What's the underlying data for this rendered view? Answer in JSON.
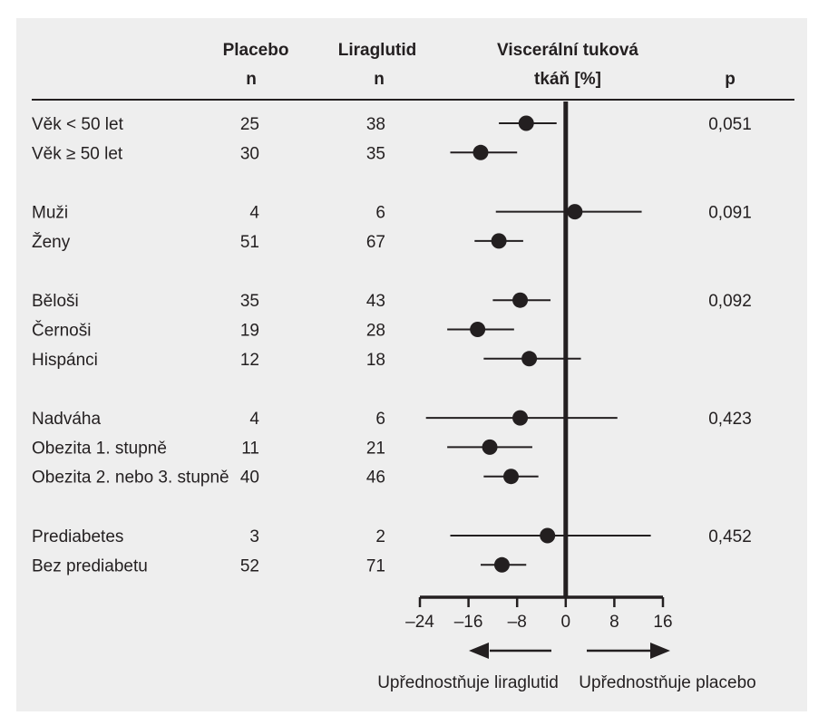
{
  "headers": {
    "placebo": "Placebo",
    "placebo_n": "n",
    "liraglutide": "Liraglutid",
    "liraglutide_n": "n",
    "effect_line1": "Viscerální tuková",
    "effect_line2": "tkáň [%]",
    "p": "p"
  },
  "chart_data": {
    "type": "forest",
    "title": "",
    "xlabel": "Viscerální tuková tkáň [%]",
    "xlim": [
      -24,
      16
    ],
    "x_ticks": [
      -24,
      -16,
      -8,
      0,
      8,
      16
    ],
    "x_tick_labels": [
      "–24",
      "–16",
      "–8",
      "0",
      "8",
      "16"
    ],
    "reference_line": 0,
    "groups": [
      {
        "p": "0,051",
        "rows": [
          {
            "label": "Věk < 50 let",
            "placebo_n": "25",
            "liraglutide_n": "38",
            "estimate": -6.5,
            "ci_low": -11,
            "ci_high": -1.5
          },
          {
            "label": "Věk ≥ 50 let",
            "placebo_n": "30",
            "liraglutide_n": "35",
            "estimate": -14,
            "ci_low": -19,
            "ci_high": -8
          }
        ]
      },
      {
        "p": "0,091",
        "rows": [
          {
            "label": "Muži",
            "placebo_n": "4",
            "liraglutide_n": "6",
            "estimate": 1.5,
            "ci_low": -11.5,
            "ci_high": 12.5
          },
          {
            "label": "Ženy",
            "placebo_n": "51",
            "liraglutide_n": "67",
            "estimate": -11,
            "ci_low": -15,
            "ci_high": -7
          }
        ]
      },
      {
        "p": "0,092",
        "rows": [
          {
            "label": "Běloši",
            "placebo_n": "35",
            "liraglutide_n": "43",
            "estimate": -7.5,
            "ci_low": -12,
            "ci_high": -2.5
          },
          {
            "label": "Černoši",
            "placebo_n": "19",
            "liraglutide_n": "28",
            "estimate": -14.5,
            "ci_low": -19.5,
            "ci_high": -8.5
          },
          {
            "label": "Hispánci",
            "placebo_n": "12",
            "liraglutide_n": "18",
            "estimate": -6,
            "ci_low": -13.5,
            "ci_high": 2.5
          }
        ]
      },
      {
        "p": "0,423",
        "rows": [
          {
            "label": "Nadváha",
            "placebo_n": "4",
            "liraglutide_n": "6",
            "estimate": -7.5,
            "ci_low": -23,
            "ci_high": 8.5
          },
          {
            "label": "Obezita 1. stupně",
            "placebo_n": "11",
            "liraglutide_n": "21",
            "estimate": -12.5,
            "ci_low": -19.5,
            "ci_high": -5.5
          },
          {
            "label": "Obezita 2. nebo 3. stupně",
            "placebo_n": "40",
            "liraglutide_n": "46",
            "estimate": -9,
            "ci_low": -13.5,
            "ci_high": -4.5
          }
        ]
      },
      {
        "p": "0,452",
        "rows": [
          {
            "label": "Prediabetes",
            "placebo_n": "3",
            "liraglutide_n": "2",
            "estimate": -3,
            "ci_low": -19,
            "ci_high": 14
          },
          {
            "label": "Bez prediabetu",
            "placebo_n": "52",
            "liraglutide_n": "71",
            "estimate": -10.5,
            "ci_low": -14,
            "ci_high": -6.5
          }
        ]
      }
    ],
    "favors_left": "Upřednostňuje liraglutid",
    "favors_right": "Upřednostňuje placebo"
  }
}
